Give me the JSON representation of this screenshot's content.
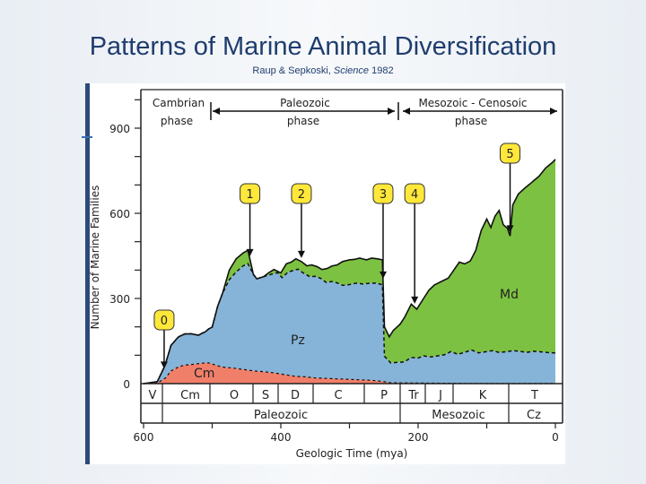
{
  "slide": {
    "title": "Patterns of Marine Animal Diversification",
    "citation_prefix": "Raup & Sepkoski, ",
    "citation_journal": "Science",
    "citation_year": " 1982"
  },
  "colors": {
    "cambrian": "#f07f6a",
    "paleozoic": "#86b4d8",
    "modern": "#7dc142",
    "marker": "#ffe83a"
  },
  "chart_data": {
    "type": "area",
    "title": "",
    "xlabel": "Geologic Time (mya)",
    "ylabel": "Number of Marine Families",
    "xlim": [
      600,
      0
    ],
    "ylim": [
      0,
      1000
    ],
    "x_ticks": [
      600,
      400,
      200,
      0
    ],
    "y_ticks": [
      0,
      300,
      600,
      900
    ],
    "phases": [
      {
        "name": "Cambrian",
        "sub": "phase"
      },
      {
        "name": "Paleozoic",
        "sub": "phase"
      },
      {
        "name": "Mesozoic - Cenosoic",
        "sub": "phase"
      }
    ],
    "periods": [
      "V",
      "Cm",
      "O",
      "S",
      "D",
      "C",
      "P",
      "Tr",
      "J",
      "K",
      "T"
    ],
    "eras": [
      "Paleozoic",
      "Mesozoic",
      "Cz"
    ],
    "markers": [
      {
        "label": "0",
        "x": 570
      },
      {
        "label": "1",
        "x": 445
      },
      {
        "label": "2",
        "x": 370
      },
      {
        "label": "3",
        "x": 251
      },
      {
        "label": "4",
        "x": 205
      },
      {
        "label": "5",
        "x": 66
      }
    ],
    "series": [
      {
        "name": "Cm",
        "label": "Cm",
        "kind": "band",
        "points": [
          [
            600,
            0
          ],
          [
            580,
            2
          ],
          [
            568,
            20
          ],
          [
            560,
            45
          ],
          [
            548,
            60
          ],
          [
            540,
            65
          ],
          [
            528,
            68
          ],
          [
            515,
            72
          ],
          [
            505,
            73
          ],
          [
            495,
            65
          ],
          [
            485,
            58
          ],
          [
            470,
            55
          ],
          [
            455,
            50
          ],
          [
            440,
            45
          ],
          [
            425,
            42
          ],
          [
            410,
            38
          ],
          [
            395,
            32
          ],
          [
            380,
            26
          ],
          [
            365,
            24
          ],
          [
            350,
            20
          ],
          [
            330,
            18
          ],
          [
            310,
            16
          ],
          [
            290,
            14
          ],
          [
            270,
            12
          ],
          [
            252,
            8
          ],
          [
            240,
            3
          ],
          [
            200,
            2
          ],
          [
            150,
            1
          ],
          [
            100,
            0
          ],
          [
            0,
            0
          ]
        ]
      },
      {
        "name": "Pz",
        "label": "Pz",
        "kind": "band",
        "points": [
          [
            600,
            0
          ],
          [
            580,
            5
          ],
          [
            570,
            40
          ],
          [
            560,
            90
          ],
          [
            550,
            105
          ],
          [
            540,
            110
          ],
          [
            530,
            108
          ],
          [
            520,
            100
          ],
          [
            510,
            110
          ],
          [
            500,
            130
          ],
          [
            492,
            210
          ],
          [
            485,
            260
          ],
          [
            475,
            310
          ],
          [
            465,
            340
          ],
          [
            455,
            365
          ],
          [
            448,
            375
          ],
          [
            440,
            340
          ],
          [
            435,
            325
          ],
          [
            425,
            335
          ],
          [
            415,
            345
          ],
          [
            405,
            355
          ],
          [
            398,
            340
          ],
          [
            390,
            362
          ],
          [
            382,
            372
          ],
          [
            375,
            378
          ],
          [
            367,
            365
          ],
          [
            358,
            355
          ],
          [
            350,
            358
          ],
          [
            342,
            352
          ],
          [
            334,
            338
          ],
          [
            326,
            342
          ],
          [
            318,
            338
          ],
          [
            310,
            330
          ],
          [
            300,
            334
          ],
          [
            290,
            340
          ],
          [
            280,
            338
          ],
          [
            270,
            342
          ],
          [
            260,
            344
          ],
          [
            252,
            340
          ],
          [
            249,
            90
          ],
          [
            240,
            70
          ],
          [
            230,
            72
          ],
          [
            220,
            74
          ],
          [
            210,
            90
          ],
          [
            200,
            88
          ],
          [
            192,
            96
          ],
          [
            182,
            92
          ],
          [
            172,
            96
          ],
          [
            162,
            100
          ],
          [
            152,
            112
          ],
          [
            142,
            102
          ],
          [
            132,
            110
          ],
          [
            122,
            118
          ],
          [
            112,
            108
          ],
          [
            102,
            112
          ],
          [
            92,
            116
          ],
          [
            82,
            110
          ],
          [
            72,
            112
          ],
          [
            62,
            116
          ],
          [
            52,
            114
          ],
          [
            42,
            110
          ],
          [
            32,
            114
          ],
          [
            22,
            112
          ],
          [
            12,
            110
          ],
          [
            0,
            108
          ]
        ]
      },
      {
        "name": "Md",
        "label": "Md",
        "kind": "total",
        "points": [
          [
            600,
            0
          ],
          [
            580,
            5
          ],
          [
            570,
            40
          ],
          [
            560,
            92
          ],
          [
            550,
            108
          ],
          [
            540,
            115
          ],
          [
            530,
            112
          ],
          [
            520,
            105
          ],
          [
            510,
            118
          ],
          [
            500,
            140
          ],
          [
            492,
            240
          ],
          [
            485,
            310
          ],
          [
            475,
            400
          ],
          [
            465,
            440
          ],
          [
            455,
            460
          ],
          [
            448,
            470
          ],
          [
            440,
            380
          ],
          [
            435,
            355
          ],
          [
            425,
            372
          ],
          [
            418,
            390
          ],
          [
            410,
            402
          ],
          [
            400,
            390
          ],
          [
            392,
            422
          ],
          [
            385,
            428
          ],
          [
            378,
            440
          ],
          [
            370,
            430
          ],
          [
            362,
            415
          ],
          [
            355,
            418
          ],
          [
            347,
            412
          ],
          [
            340,
            402
          ],
          [
            332,
            406
          ],
          [
            325,
            415
          ],
          [
            318,
            418
          ],
          [
            310,
            430
          ],
          [
            300,
            436
          ],
          [
            292,
            438
          ],
          [
            285,
            442
          ],
          [
            275,
            436
          ],
          [
            268,
            442
          ],
          [
            260,
            440
          ],
          [
            252,
            436
          ],
          [
            249,
            200
          ],
          [
            242,
            165
          ],
          [
            236,
            188
          ],
          [
            226,
            210
          ],
          [
            220,
            232
          ],
          [
            210,
            280
          ],
          [
            202,
            262
          ],
          [
            192,
            300
          ],
          [
            184,
            330
          ],
          [
            176,
            348
          ],
          [
            166,
            360
          ],
          [
            156,
            372
          ],
          [
            148,
            400
          ],
          [
            140,
            428
          ],
          [
            132,
            422
          ],
          [
            124,
            432
          ],
          [
            116,
            470
          ],
          [
            108,
            540
          ],
          [
            100,
            580
          ],
          [
            94,
            550
          ],
          [
            88,
            590
          ],
          [
            82,
            610
          ],
          [
            76,
            560
          ],
          [
            70,
            548
          ],
          [
            66,
            520
          ],
          [
            62,
            630
          ],
          [
            54,
            668
          ],
          [
            44,
            690
          ],
          [
            34,
            710
          ],
          [
            24,
            730
          ],
          [
            14,
            760
          ],
          [
            4,
            780
          ],
          [
            0,
            790
          ]
        ]
      }
    ]
  }
}
